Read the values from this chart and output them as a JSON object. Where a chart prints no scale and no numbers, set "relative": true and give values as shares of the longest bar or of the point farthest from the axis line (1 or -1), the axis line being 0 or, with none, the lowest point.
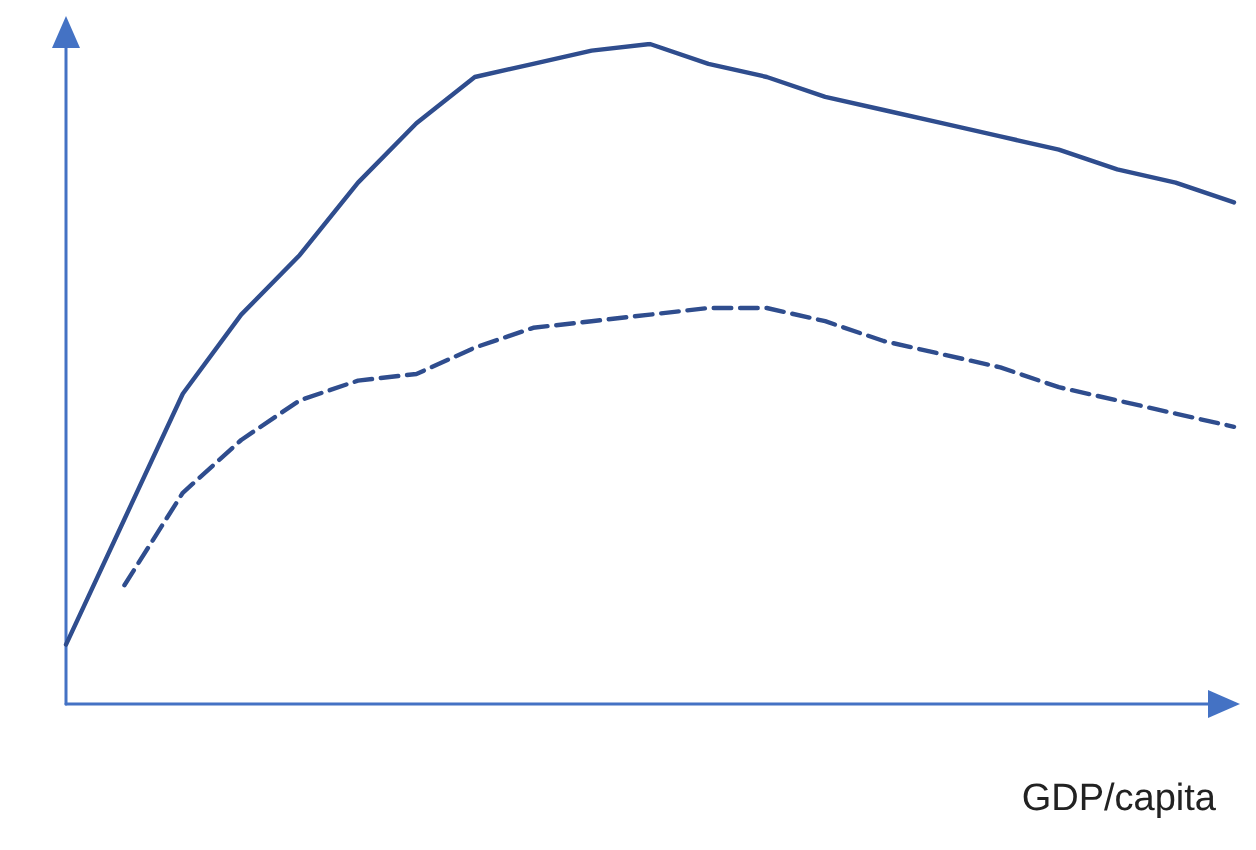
{
  "chart_data": {
    "type": "line",
    "relative": true,
    "xlabel": "GDP/capita",
    "marker": "none",
    "grid": false,
    "categories": [
      null,
      null,
      null,
      null,
      null,
      null,
      null,
      null,
      null,
      null,
      null,
      null,
      null,
      null,
      null,
      null,
      null,
      null,
      null,
      null,
      null
    ],
    "series": [
      {
        "color": "#2f4d8e",
        "line_style": "solid",
        "values": [
          0.09,
          0.28,
          0.47,
          0.59,
          0.68,
          0.79,
          0.88,
          0.95,
          0.97,
          0.99,
          1,
          0.97,
          0.95,
          0.92,
          0.9,
          0.88,
          0.86,
          0.84,
          0.81,
          0.79,
          0.76
        ]
      },
      {
        "color": "#2f4d8e",
        "line_style": "dashed",
        "values": [
          null,
          0.18,
          0.32,
          0.4,
          0.46,
          0.49,
          0.5,
          0.54,
          0.57,
          0.58,
          0.59,
          0.6,
          0.6,
          0.58,
          0.55,
          0.53,
          0.51,
          0.48,
          0.46,
          0.44,
          0.42
        ]
      }
    ]
  }
}
